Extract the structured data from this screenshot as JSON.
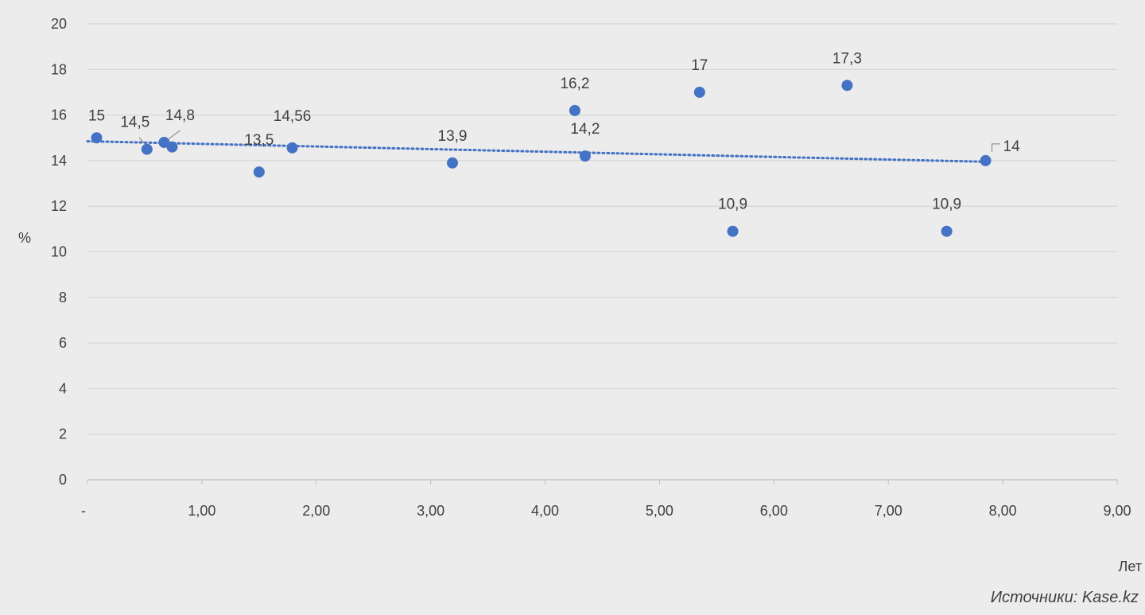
{
  "chart_data": {
    "type": "scatter",
    "title": "",
    "xlabel": "Лет",
    "ylabel": "%",
    "xlim": [
      0,
      9
    ],
    "ylim": [
      0,
      20
    ],
    "x_ticks": [
      0,
      1,
      2,
      3,
      4,
      5,
      6,
      7,
      8,
      9
    ],
    "x_tick_labels": [
      "-",
      "1,00",
      "2,00",
      "3,00",
      "4,00",
      "5,00",
      "6,00",
      "7,00",
      "8,00",
      "9,00"
    ],
    "y_ticks": [
      0,
      2,
      4,
      6,
      8,
      10,
      12,
      14,
      16,
      18,
      20
    ],
    "y_tick_labels": [
      "0",
      "2",
      "4",
      "6",
      "8",
      "10",
      "12",
      "14",
      "16",
      "18",
      "20"
    ],
    "grid": "horizontal",
    "legend": "none",
    "colors": {
      "point": "#4472c4",
      "trendline": "#4472c4",
      "grid": "#d0d0d0",
      "axis": "#bfbfbf",
      "background": "#ececec"
    },
    "points": [
      {
        "x": 0.08,
        "y": 15,
        "label": "15"
      },
      {
        "x": 0.52,
        "y": 14.5,
        "label": "14,5"
      },
      {
        "x": 0.67,
        "y": 14.8,
        "label": "14,8"
      },
      {
        "x": 0.74,
        "y": 14.6,
        "label": ""
      },
      {
        "x": 1.5,
        "y": 13.5,
        "label": "13,5"
      },
      {
        "x": 1.79,
        "y": 14.56,
        "label": "14,56"
      },
      {
        "x": 3.19,
        "y": 13.9,
        "label": "13,9"
      },
      {
        "x": 4.26,
        "y": 16.2,
        "label": "16,2"
      },
      {
        "x": 4.35,
        "y": 14.2,
        "label": "14,2"
      },
      {
        "x": 5.35,
        "y": 17,
        "label": "17"
      },
      {
        "x": 5.64,
        "y": 10.9,
        "label": "10,9"
      },
      {
        "x": 6.64,
        "y": 17.3,
        "label": "17,3"
      },
      {
        "x": 7.51,
        "y": 10.9,
        "label": "10,9"
      },
      {
        "x": 7.85,
        "y": 14,
        "label": "14"
      }
    ],
    "trendline": {
      "type": "linear",
      "x": [
        0,
        7.85
      ],
      "y": [
        14.85,
        13.95
      ]
    },
    "source_note": "Источники: Kase.kz"
  }
}
